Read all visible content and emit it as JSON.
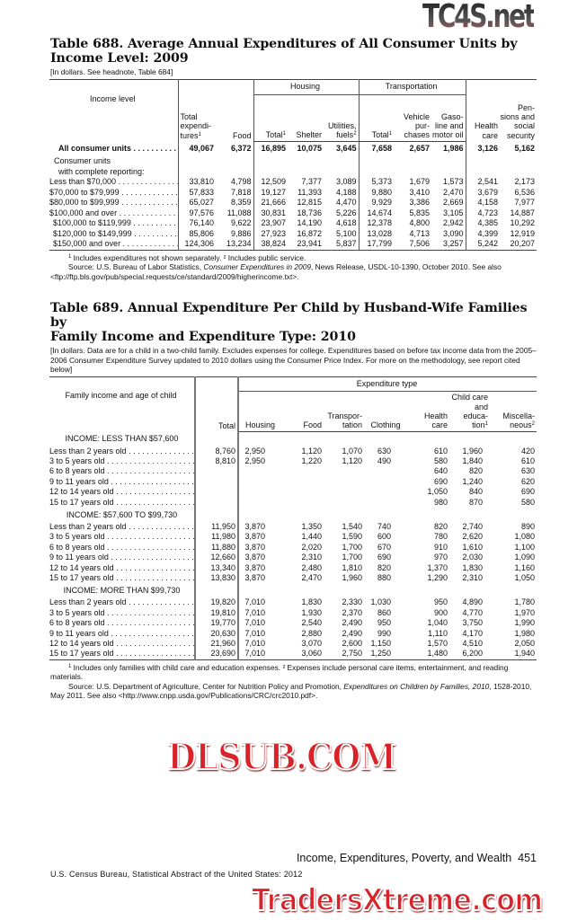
{
  "table688": {
    "title_line1": "Table 688. Average Annual Expenditures of All Consumer Units by",
    "title_line2": "Income Level: 2009",
    "headnote": "[In dollars. See headnote, Table 684]",
    "headers": {
      "income_level": "Income level",
      "total_expenditures": "Total expendi- tures",
      "food": "Food",
      "housing_group": "Housing",
      "housing_total": "Total",
      "shelter": "Shelter",
      "utilities": "Utilities, fuels",
      "transportation_group": "Transportation",
      "transport_total": "Total",
      "vehicle": "Vehicle pur- chases",
      "gasoline": "Gaso- line and motor oil",
      "health": "Health care",
      "pensions": "Pen- sions and social security"
    },
    "all_units": {
      "label": "All consumer units",
      "values": [
        "49,067",
        "6,372",
        "16,895",
        "10,075",
        "3,645",
        "7,658",
        "2,657",
        "1,986",
        "3,126",
        "5,162"
      ]
    },
    "subhead_line1": "Consumer units",
    "subhead_line2": "with complete reporting:",
    "rows": [
      {
        "label": "Less than $70,000",
        "values": [
          "33,810",
          "4,798",
          "12,509",
          "7,377",
          "3,089",
          "5,373",
          "1,679",
          "1,573",
          "2,541",
          "2,173"
        ]
      },
      {
        "label": "$70,000 to $79,999",
        "values": [
          "57,833",
          "7,818",
          "19,127",
          "11,393",
          "4,188",
          "9,880",
          "3,410",
          "2,470",
          "3,679",
          "6,536"
        ]
      },
      {
        "label": "$80,000 to $99,999",
        "values": [
          "65,027",
          "8,359",
          "21,666",
          "12,815",
          "4,470",
          "9,929",
          "3,386",
          "2,669",
          "4,158",
          "7,977"
        ]
      },
      {
        "label": "$100,000 and over",
        "values": [
          "97,576",
          "11,088",
          "30,831",
          "18,736",
          "5,226",
          "14,674",
          "5,835",
          "3,105",
          "4,723",
          "14,887"
        ]
      },
      {
        "label": "$100,000 to $119,999",
        "indent": true,
        "values": [
          "76,140",
          "9,622",
          "23,907",
          "14,190",
          "4,618",
          "12,378",
          "4,800",
          "2,942",
          "4,385",
          "10,292"
        ]
      },
      {
        "label": "$120,000 to $149,999",
        "indent": true,
        "values": [
          "85,806",
          "9,886",
          "27,923",
          "16,872",
          "5,100",
          "13,028",
          "4,713",
          "3,090",
          "4,399",
          "12,919"
        ]
      },
      {
        "label": "$150,000 and over",
        "indent": true,
        "values": [
          "124,306",
          "13,234",
          "38,824",
          "23,941",
          "5,837",
          "17,799",
          "7,506",
          "3,257",
          "5,242",
          "20,207"
        ]
      }
    ],
    "footnote": "Includes expenditures not shown separately. ² Includes public service.",
    "source_prefix": "Source: U.S. Bureau of Labor Statistics, ",
    "source_title": "Consumer Expenditures in 2009",
    "source_suffix": ", News Release, USDL-10-1390, October 2010. See also <ftp://ftp.bls.gov/pub/special.requests/ce/standard/2009/higherincome.txt>."
  },
  "table689": {
    "title_line1": "Table 689. Annual Expenditure Per Child by Husband-Wife Families by",
    "title_line2": "Family Income and Expenditure Type: 2010",
    "headnote": "[In dollars. Data are for a child in a two-child family. Excludes expenses for college. Expenditures based on before tax income data from the 2005–2006 Consumer Expenditure Survey updated to 2010 dollars using the Consumer Price Index. For more on the methodology, see report cited below]",
    "headers": {
      "family_income": "Family income and age of child",
      "total": "Total",
      "expenditure_group": "Expenditure type",
      "housing": "Housing",
      "food": "Food",
      "transportation": "Transpor- tation",
      "clothing": "Clothing",
      "health": "Health care",
      "childcare": "Child care and educa- tion",
      "misc": "Miscella- neous"
    },
    "sections": [
      {
        "heading": "INCOME: LESS THAN $57,600",
        "rows": [
          {
            "label": "Less than 2 years old",
            "values": [
              "8,760",
              "2,950",
              "1,120",
              "1,070",
              "630",
              "610",
              "1,960",
              "420"
            ]
          },
          {
            "label": "3 to 5 years old",
            "values": [
              "8,810",
              "2,950",
              "1,220",
              "1,120",
              "490",
              "580",
              "1,840",
              "610"
            ]
          },
          {
            "label": "6 to 8 years old",
            "values": [
              "",
              "",
              "",
              "",
              "",
              "640",
              "820",
              "630"
            ]
          },
          {
            "label": "9 to 11 years old",
            "values": [
              "",
              "",
              "",
              "",
              "",
              "690",
              "1,240",
              "620"
            ]
          },
          {
            "label": "12 to 14 years old",
            "values": [
              "",
              "",
              "",
              "",
              "",
              "1,050",
              "840",
              "690"
            ]
          },
          {
            "label": "15 to 17 years old",
            "values": [
              "",
              "",
              "",
              "",
              "",
              "980",
              "870",
              "580"
            ]
          }
        ]
      },
      {
        "heading": "INCOME: $57,600 TO $99,730",
        "rows": [
          {
            "label": "Less than 2 years old",
            "values": [
              "11,950",
              "3,870",
              "1,350",
              "1,540",
              "740",
              "820",
              "2,740",
              "890"
            ]
          },
          {
            "label": "3 to 5 years old",
            "values": [
              "11,980",
              "3,870",
              "1,440",
              "1,590",
              "600",
              "780",
              "2,620",
              "1,080"
            ]
          },
          {
            "label": "6 to 8 years old",
            "values": [
              "11,880",
              "3,870",
              "2,020",
              "1,700",
              "670",
              "910",
              "1,610",
              "1,100"
            ]
          },
          {
            "label": "9 to 11 years old",
            "values": [
              "12,660",
              "3,870",
              "2,310",
              "1,700",
              "690",
              "970",
              "2,030",
              "1,090"
            ]
          },
          {
            "label": "12 to 14 years old",
            "values": [
              "13,340",
              "3,870",
              "2,480",
              "1,810",
              "820",
              "1,370",
              "1,830",
              "1,160"
            ]
          },
          {
            "label": "15 to 17 years old",
            "values": [
              "13,830",
              "3,870",
              "2,470",
              "1,960",
              "880",
              "1,290",
              "2,310",
              "1,050"
            ]
          }
        ]
      },
      {
        "heading": "INCOME: MORE THAN $99,730",
        "rows": [
          {
            "label": "Less than 2 years old",
            "values": [
              "19,820",
              "7,010",
              "1,830",
              "2,330",
              "1,030",
              "950",
              "4,890",
              "1,780"
            ]
          },
          {
            "label": "3 to 5 years old",
            "values": [
              "19,810",
              "7,010",
              "1,930",
              "2,370",
              "860",
              "900",
              "4,770",
              "1,970"
            ]
          },
          {
            "label": "6 to 8 years old",
            "values": [
              "19,770",
              "7,010",
              "2,540",
              "2,490",
              "950",
              "1,040",
              "3,750",
              "1,990"
            ]
          },
          {
            "label": "9 to 11 years old",
            "values": [
              "20,630",
              "7,010",
              "2,880",
              "2,490",
              "990",
              "1,110",
              "4,170",
              "1,980"
            ]
          },
          {
            "label": "12 to 14 years old",
            "values": [
              "21,960",
              "7,010",
              "3,070",
              "2,600",
              "1,150",
              "1,570",
              "4,510",
              "2,050"
            ]
          },
          {
            "label": "15 to 17 years old",
            "values": [
              "23,690",
              "7,010",
              "3,060",
              "2,750",
              "1,250",
              "1,480",
              "6,200",
              "1,940"
            ]
          }
        ]
      }
    ],
    "footnote": "Includes only families with child care and education expenses. ² Expenses include personal care items, entertainment, and reading materials.",
    "source_prefix": "Source: U.S. Department of Agriculture, Center for Nutrition Policy and Promotion, ",
    "source_title": "Expenditures on Children by Families, 2010",
    "source_suffix": ", 1528-2010, May 2011. See also <http://www.cnpp.usda.gov/Publications/CRC/crc2010.pdf>."
  },
  "page": {
    "running_head": "Income, Expenditures, Poverty, and Wealth",
    "page_number": "451",
    "publisher": "U.S. Census Bureau, Statistical Abstract of the United States: 2012"
  },
  "watermarks": {
    "top": "TC4S.net",
    "middle": "DLSUB.COM",
    "bottom": "TradersXtreme.com"
  }
}
